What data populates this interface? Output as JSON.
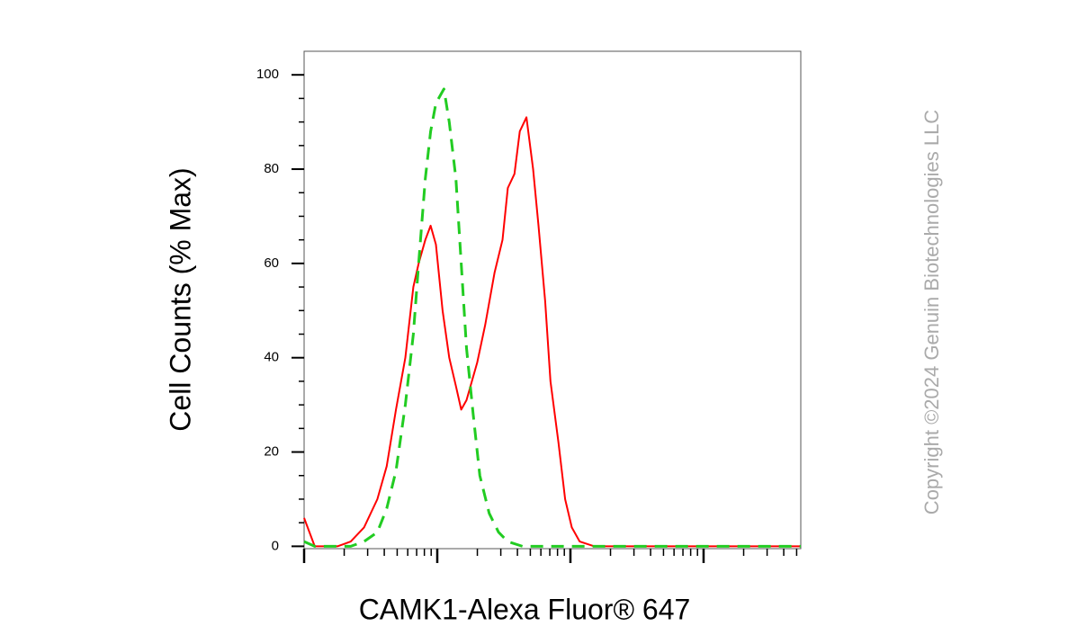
{
  "chart_data": {
    "type": "line",
    "x_label": "CAMK1-Alexa Fluor® 647",
    "y_label": "Cell Counts (% Max)",
    "watermark": "Copyright ©2024 Genuin Biotechnologies LLC",
    "xscale": "log",
    "xlim": [
      0,
      3.73
    ],
    "xticks": [
      0,
      1,
      2,
      3
    ],
    "ylim": [
      -0.5,
      105
    ],
    "yticks": [
      0,
      20,
      40,
      60,
      80,
      100
    ],
    "series": [
      {
        "color": "#ff0000",
        "dash": false,
        "x": [
          0,
          0.08,
          0.25,
          0.35,
          0.45,
          0.55,
          0.62,
          0.69,
          0.76,
          0.82,
          0.86,
          0.91,
          0.95,
          0.99,
          1.04,
          1.09,
          1.14,
          1.18,
          1.22,
          1.3,
          1.36,
          1.43,
          1.49,
          1.53,
          1.58,
          1.62,
          1.67,
          1.72,
          1.76,
          1.81,
          1.85,
          1.91,
          1.96,
          2.01,
          2.07,
          2.18,
          3.73
        ],
        "values": [
          6,
          0,
          0,
          1,
          4,
          10,
          17,
          29,
          40,
          55,
          60,
          65,
          68,
          64,
          50,
          40,
          34,
          29,
          31,
          39,
          47,
          58,
          65,
          76,
          79,
          88,
          91,
          80,
          68,
          52,
          35,
          22,
          10,
          4,
          1,
          0,
          0
        ]
      },
      {
        "color": "#22cc22",
        "dash": true,
        "x": [
          0,
          0.08,
          0.35,
          0.45,
          0.55,
          0.62,
          0.69,
          0.76,
          0.82,
          0.86,
          0.91,
          0.95,
          0.99,
          1.05,
          1.09,
          1.14,
          1.18,
          1.22,
          1.27,
          1.32,
          1.39,
          1.46,
          1.53,
          1.64,
          3.73
        ],
        "values": [
          1,
          0,
          0,
          1,
          3,
          8,
          16,
          30,
          45,
          60,
          78,
          88,
          94,
          97,
          90,
          78,
          60,
          42,
          28,
          15,
          7,
          3,
          1,
          0,
          0
        ]
      }
    ]
  }
}
